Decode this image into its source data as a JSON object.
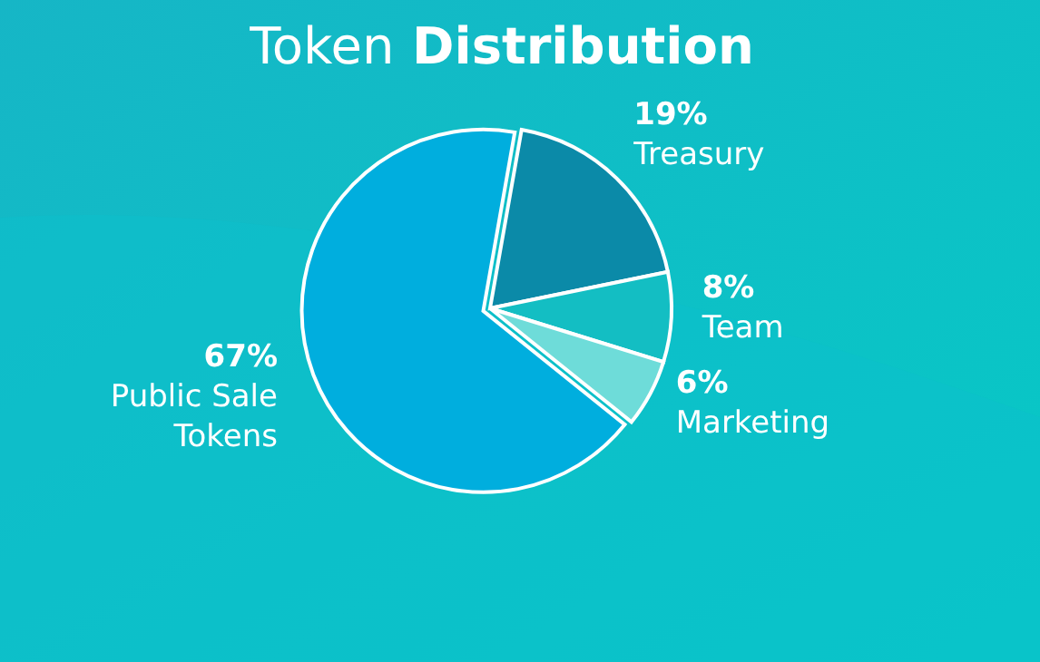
{
  "chart_data": {
    "type": "pie",
    "title": "Token Distribution",
    "categories": [
      "Treasury",
      "Team",
      "Marketing",
      "Public Sale Tokens"
    ],
    "values": [
      19,
      8,
      6,
      67
    ],
    "value_labels": [
      "19%",
      "8%",
      "6%",
      "67%"
    ],
    "colors": [
      "#0b8aa8",
      "#13bec3",
      "#6edcd9",
      "#00aede"
    ]
  }
}
